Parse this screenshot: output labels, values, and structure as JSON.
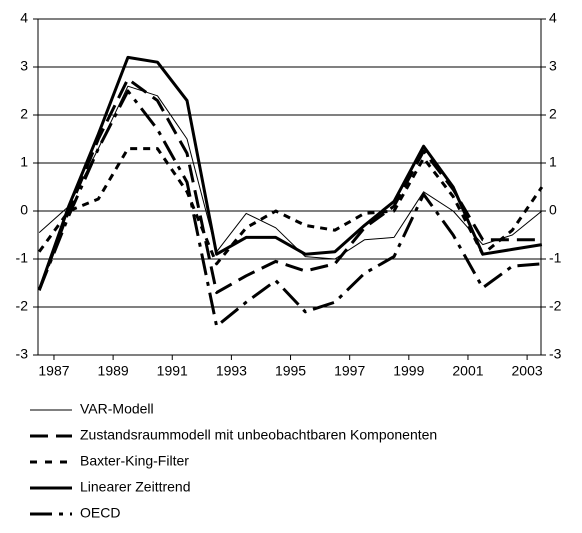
{
  "chart_data": {
    "type": "line",
    "x": [
      1986.5,
      1987.5,
      1988.5,
      1989.5,
      1990.5,
      1991.5,
      1992.5,
      1993.5,
      1994.5,
      1995.5,
      1996.5,
      1997.5,
      1998.5,
      1999.5,
      2000.5,
      2001.5,
      2002.5,
      2003.5
    ],
    "xlim": [
      1986.46,
      2003.47
    ],
    "xticks": [
      1987,
      1989,
      1991,
      1993,
      1995,
      1997,
      1999,
      2001,
      2003
    ],
    "ylim": [
      -3,
      4
    ],
    "yticks": [
      -3,
      -2,
      -1,
      0,
      1,
      2,
      3,
      4
    ],
    "grid": true,
    "series": [
      {
        "name": "VAR-Modell",
        "color": "#000000",
        "values": [
          -0.45,
          0.1,
          1.3,
          2.6,
          2.4,
          1.5,
          -0.85,
          -0.05,
          -0.35,
          -0.95,
          -1.0,
          -0.6,
          -0.55,
          0.4,
          0.0,
          -0.7,
          -0.5,
          0.0
        ]
      },
      {
        "name": "Zustandsraummodell mit unbeobachtbaren Komponenten",
        "color": "#000000",
        "values": [
          -1.65,
          0.0,
          1.5,
          2.75,
          2.3,
          1.2,
          -1.7,
          -1.35,
          -1.05,
          -1.25,
          -1.1,
          -0.35,
          0.1,
          1.25,
          0.45,
          -0.6,
          -0.6,
          -0.6
        ]
      },
      {
        "name": "Baxter-King-Filter",
        "color": "#000000",
        "values": [
          -0.85,
          0.0,
          0.25,
          1.3,
          1.3,
          0.4,
          -1.1,
          -0.35,
          0.0,
          -0.3,
          -0.4,
          -0.05,
          0.0,
          1.1,
          0.3,
          -0.9,
          -0.4,
          0.5
        ]
      },
      {
        "name": "Linearer Zeittrend",
        "color": "#000000",
        "values": [
          -1.65,
          0.1,
          1.6,
          3.2,
          3.1,
          2.3,
          -0.9,
          -0.55,
          -0.55,
          -0.9,
          -0.85,
          -0.3,
          0.2,
          1.35,
          0.5,
          -0.9,
          -0.8,
          -0.7
        ]
      },
      {
        "name": "OECD",
        "color": "#000000",
        "values": [
          -1.65,
          -0.1,
          1.3,
          2.5,
          1.7,
          0.6,
          -2.4,
          -1.9,
          -1.45,
          -2.1,
          -1.9,
          -1.3,
          -0.95,
          0.35,
          -0.5,
          -1.6,
          -1.15,
          -1.1
        ]
      }
    ]
  }
}
